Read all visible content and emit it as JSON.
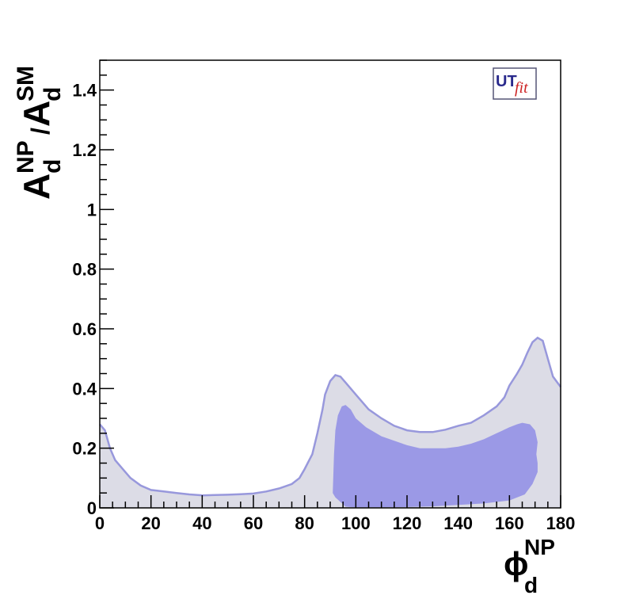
{
  "chart_data": {
    "type": "area",
    "title": "",
    "xlabel": {
      "base": "ϕ",
      "sup": "NP",
      "sub": "d"
    },
    "ylabel": {
      "A1": "A",
      "sub1": "d",
      "sup1": "NP",
      "slash": "/",
      "A2": "A",
      "sub2": "d",
      "sup2": "SM"
    },
    "xlim": [
      0,
      180
    ],
    "ylim": [
      0,
      1.5
    ],
    "x_ticks": [
      "0",
      "20",
      "40",
      "60",
      "80",
      "100",
      "120",
      "140",
      "160",
      "180"
    ],
    "y_ticks": [
      "0",
      "0.2",
      "0.4",
      "0.6",
      "0.8",
      "1",
      "1.2",
      "1.4"
    ],
    "grid": false,
    "logo": {
      "part1": "UT",
      "part2": "fit"
    },
    "colors": {
      "outer_region": "#dcdce6",
      "outer_line": "#9898dc",
      "inner_region": "#9b99e6",
      "axis": "#000000",
      "logo_red": "#cc2222",
      "logo_blue": "#2a2a8c"
    },
    "series": [
      {
        "region": "outer",
        "upper": [
          [
            0,
            0.28
          ],
          [
            2,
            0.26
          ],
          [
            4,
            0.2
          ],
          [
            6,
            0.16
          ],
          [
            8,
            0.14
          ],
          [
            10,
            0.12
          ],
          [
            12,
            0.1
          ],
          [
            16,
            0.075
          ],
          [
            20,
            0.06
          ],
          [
            25,
            0.055
          ],
          [
            30,
            0.05
          ],
          [
            35,
            0.045
          ],
          [
            40,
            0.042
          ],
          [
            45,
            0.043
          ],
          [
            50,
            0.044
          ],
          [
            55,
            0.046
          ],
          [
            60,
            0.048
          ],
          [
            65,
            0.055
          ],
          [
            70,
            0.065
          ],
          [
            75,
            0.08
          ],
          [
            78,
            0.1
          ],
          [
            80,
            0.13
          ],
          [
            83,
            0.18
          ],
          [
            85,
            0.25
          ],
          [
            87,
            0.33
          ],
          [
            88,
            0.38
          ],
          [
            90,
            0.425
          ],
          [
            92,
            0.445
          ],
          [
            94,
            0.44
          ],
          [
            96,
            0.42
          ],
          [
            100,
            0.38
          ],
          [
            105,
            0.33
          ],
          [
            110,
            0.3
          ],
          [
            115,
            0.275
          ],
          [
            120,
            0.26
          ],
          [
            125,
            0.254
          ],
          [
            130,
            0.254
          ],
          [
            135,
            0.262
          ],
          [
            140,
            0.275
          ],
          [
            145,
            0.285
          ],
          [
            150,
            0.31
          ],
          [
            155,
            0.34
          ],
          [
            158,
            0.37
          ],
          [
            160,
            0.41
          ],
          [
            163,
            0.45
          ],
          [
            165,
            0.48
          ],
          [
            167,
            0.52
          ],
          [
            169,
            0.555
          ],
          [
            171,
            0.57
          ],
          [
            173,
            0.56
          ],
          [
            175,
            0.5
          ],
          [
            177,
            0.44
          ],
          [
            180,
            0.405
          ]
        ],
        "lower": [
          [
            0,
            0
          ],
          [
            180,
            0
          ]
        ]
      },
      {
        "region": "inner",
        "upper": [
          [
            91,
            0.05
          ],
          [
            91.5,
            0.18
          ],
          [
            92,
            0.26
          ],
          [
            93,
            0.31
          ],
          [
            94.5,
            0.34
          ],
          [
            96,
            0.345
          ],
          [
            98,
            0.33
          ],
          [
            100,
            0.3
          ],
          [
            104,
            0.27
          ],
          [
            110,
            0.24
          ],
          [
            115,
            0.225
          ],
          [
            120,
            0.21
          ],
          [
            125,
            0.2
          ],
          [
            130,
            0.2
          ],
          [
            135,
            0.2
          ],
          [
            140,
            0.205
          ],
          [
            145,
            0.215
          ],
          [
            150,
            0.23
          ],
          [
            155,
            0.25
          ],
          [
            160,
            0.27
          ],
          [
            163,
            0.28
          ],
          [
            165,
            0.285
          ],
          [
            168,
            0.28
          ],
          [
            170,
            0.26
          ],
          [
            171,
            0.22
          ],
          [
            170.5,
            0.18
          ],
          [
            171,
            0.15
          ],
          [
            171,
            0.12
          ]
        ],
        "lower": [
          [
            171,
            0.12
          ],
          [
            169,
            0.08
          ],
          [
            166,
            0.045
          ],
          [
            160,
            0.025
          ],
          [
            150,
            0.015
          ],
          [
            140,
            0.01
          ],
          [
            130,
            0.005
          ],
          [
            120,
            0.003
          ],
          [
            110,
            0.002
          ],
          [
            100,
            0.002
          ],
          [
            96,
            0.004
          ],
          [
            94,
            0.02
          ],
          [
            92,
            0.035
          ],
          [
            91,
            0.05
          ]
        ]
      }
    ]
  }
}
